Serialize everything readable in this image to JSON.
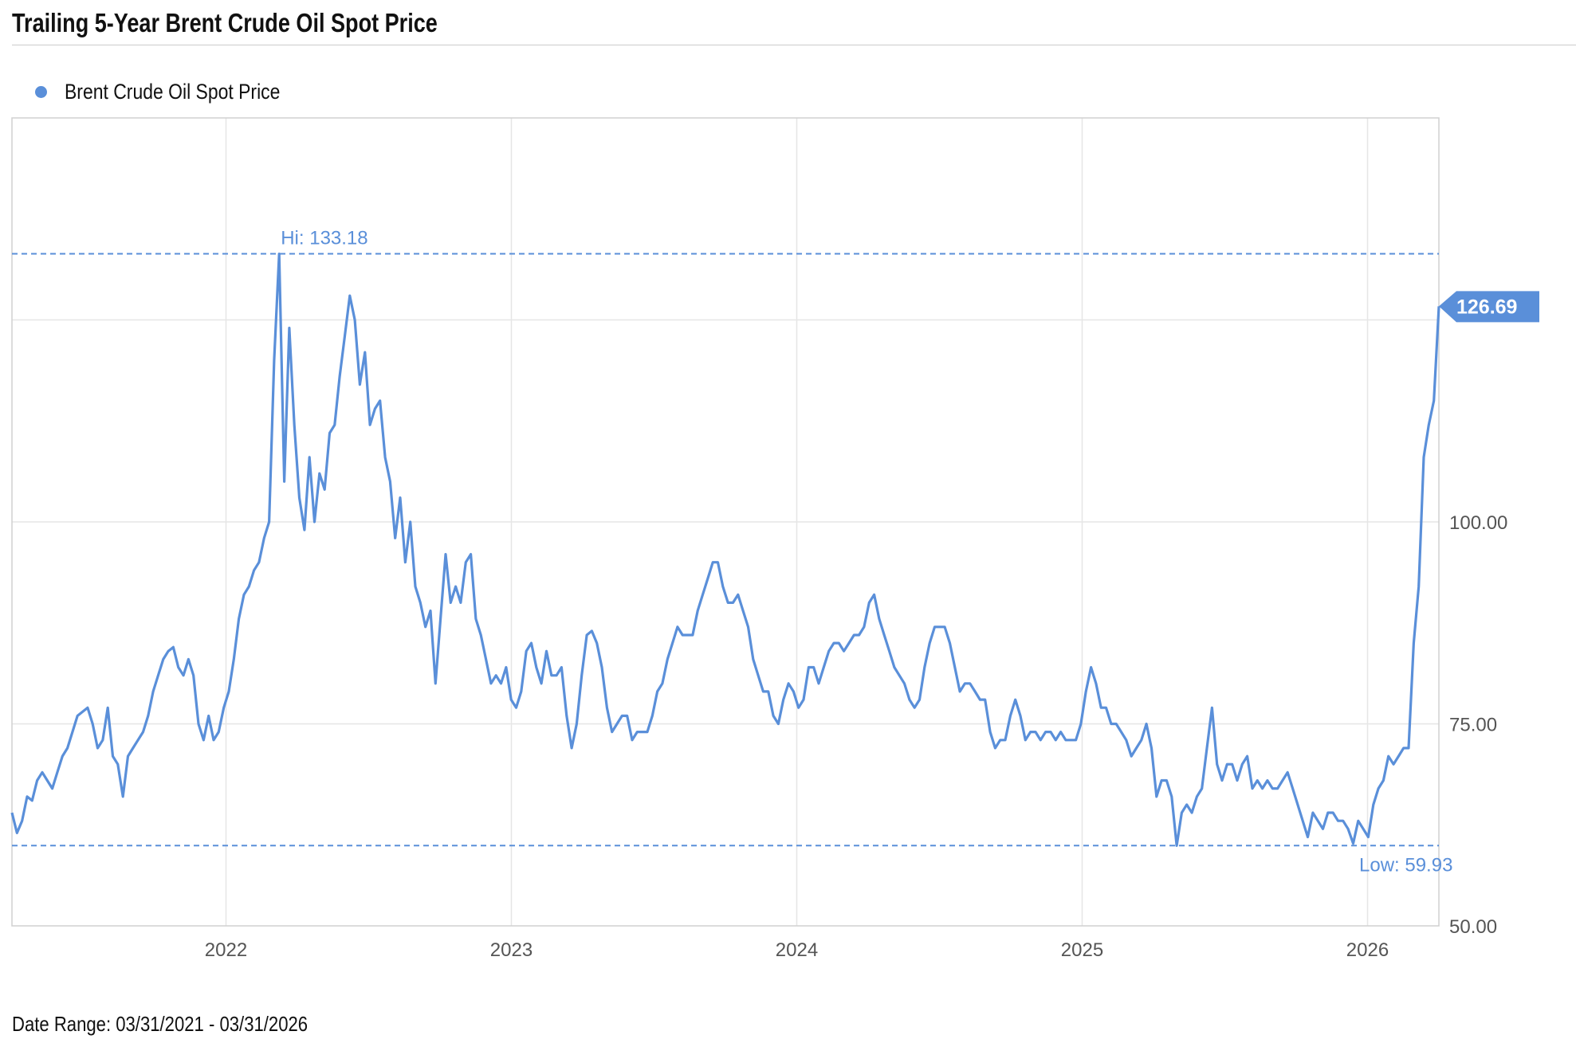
{
  "title": "Trailing 5-Year Brent Crude Oil Spot Price",
  "legend": {
    "label": "Brent Crude Oil Spot Price"
  },
  "footer": "Date Range: 03/31/2021 - 03/31/2026",
  "colors": {
    "series": "#5a8fd9",
    "grid": "#e6e6e6",
    "axis_text": "#555555"
  },
  "chart_data": {
    "type": "line",
    "title": "Trailing 5-Year Brent Crude Oil Spot Price",
    "xlabel": "",
    "ylabel": "",
    "x_start": "2021-03-31",
    "x_end": "2026-03-31",
    "x_range_years": [
      2021.25,
      2026.25
    ],
    "ylim": [
      50,
      150
    ],
    "grid": true,
    "legend_position": "top-left",
    "x_ticks": [
      {
        "label": "2022",
        "value": 2022
      },
      {
        "label": "2023",
        "value": 2023
      },
      {
        "label": "2024",
        "value": 2024
      },
      {
        "label": "2025",
        "value": 2025
      },
      {
        "label": "2026",
        "value": 2026
      }
    ],
    "y_ticks": [
      {
        "label": "100.00",
        "value": 100
      },
      {
        "label": "75.00",
        "value": 75
      },
      {
        "label": "50.00",
        "value": 50
      }
    ],
    "hi": {
      "label": "Hi: 133.18",
      "value": 133.18
    },
    "low": {
      "label": "Low: 59.93",
      "value": 59.93
    },
    "last": {
      "label": "126.69",
      "value": 126.69
    },
    "series": [
      {
        "name": "Brent Crude Oil Spot Price",
        "spacing": "evenly spaced from x_start to x_end",
        "values": [
          64,
          61.5,
          63,
          66,
          65.5,
          68,
          69,
          68,
          67,
          69,
          71,
          72,
          74,
          76,
          76.5,
          77,
          75,
          72,
          73,
          77,
          71,
          70,
          66,
          71,
          72,
          73,
          74,
          76,
          79,
          81,
          83,
          84,
          84.5,
          82,
          81,
          83,
          81,
          75,
          73,
          76,
          73,
          74,
          77,
          79,
          83,
          88,
          91,
          92,
          94,
          95,
          98,
          100,
          120,
          133.18,
          105,
          124,
          112,
          103,
          99,
          108,
          100,
          106,
          104,
          111,
          112,
          118,
          123,
          128,
          125,
          117,
          121,
          112,
          114,
          115,
          108,
          105,
          98,
          103,
          95,
          100,
          92,
          90,
          87,
          89,
          80,
          88,
          96,
          90,
          92,
          90,
          95,
          96,
          88,
          86,
          83,
          80,
          81,
          80,
          82,
          78,
          77,
          79,
          84,
          85,
          82,
          80,
          84,
          81,
          81,
          82,
          76,
          72,
          75,
          81,
          86,
          86.5,
          85,
          82,
          77,
          74,
          75,
          76,
          76,
          73,
          74,
          74,
          74,
          76,
          79,
          80,
          83,
          85,
          87,
          86,
          86,
          86,
          89,
          91,
          93,
          95,
          95,
          92,
          90,
          90,
          91,
          89,
          87,
          83,
          81,
          79,
          79,
          76,
          75,
          78,
          80,
          79,
          77,
          78,
          82,
          82,
          80,
          82,
          84,
          85,
          85,
          84,
          85,
          86,
          86,
          87,
          90,
          91,
          88,
          86,
          84,
          82,
          81,
          80,
          78,
          77,
          78,
          82,
          85,
          87,
          87,
          87,
          85,
          82,
          79,
          80,
          80,
          79,
          78,
          78,
          74,
          72,
          73,
          73,
          76,
          78,
          76,
          73,
          74,
          74,
          73,
          74,
          74,
          73,
          74,
          73,
          73,
          73,
          75,
          79,
          82,
          80,
          77,
          77,
          75,
          75,
          74,
          73,
          71,
          72,
          73,
          75,
          72,
          66,
          68,
          68,
          66,
          59.93,
          64,
          65,
          64,
          66,
          67,
          72,
          77,
          70,
          68,
          70,
          70,
          68,
          70,
          71,
          67,
          68,
          67,
          68,
          67,
          67,
          68,
          69,
          67,
          65,
          63,
          61,
          64,
          63,
          62,
          64,
          64,
          63,
          63,
          62,
          60.2,
          63,
          62,
          61,
          65,
          67,
          68,
          71,
          70,
          71,
          72,
          72,
          85,
          92,
          108,
          112,
          115,
          126.69
        ]
      }
    ]
  }
}
